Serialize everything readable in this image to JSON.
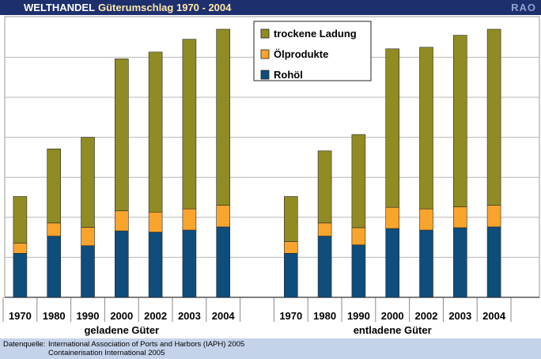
{
  "header": {
    "tag": "WELTHANDEL",
    "title": "Güterumschlag",
    "years": "1970 - 2004",
    "brand": "RAO"
  },
  "footer": {
    "label": "Datenquelle:",
    "sources": [
      "International Association of Ports and Harbors (IAPH) 2005",
      "Containerisation International 2005"
    ]
  },
  "colors": {
    "rohoel": "#0e4d7c",
    "oelprodukte": "#f9a42c",
    "trockene_ladung": "#908b23",
    "header_bg": "#1e2f6e",
    "footer_bg": "#c4d3ea"
  },
  "chart_data": {
    "type": "bar",
    "stacked": true,
    "title": "Güterumschlag 1970 - 2004",
    "xlabel": "",
    "ylabel": "",
    "ylim": [
      0,
      7
    ],
    "grid": true,
    "legend_position": "top-right",
    "groups": [
      {
        "label": "geladene Güter",
        "categories": [
          "1970",
          "1980",
          "1990",
          "2000",
          "2002",
          "2003",
          "2004"
        ]
      },
      {
        "label": "entladene Güter",
        "categories": [
          "1970",
          "1980",
          "1990",
          "2000",
          "2002",
          "2003",
          "2004"
        ]
      }
    ],
    "series": [
      {
        "name": "Rohöl",
        "color": "#0e4d7c",
        "values": [
          1.1,
          1.53,
          1.29,
          1.66,
          1.63,
          1.68,
          1.76,
          1.1,
          1.53,
          1.31,
          1.72,
          1.68,
          1.74,
          1.76
        ]
      },
      {
        "name": "Ölprodukte",
        "color": "#f9a42c",
        "values": [
          0.25,
          0.33,
          0.46,
          0.5,
          0.5,
          0.53,
          0.54,
          0.29,
          0.33,
          0.43,
          0.53,
          0.53,
          0.52,
          0.54
        ]
      },
      {
        "name": "trockene Ladung",
        "color": "#908b23",
        "values": [
          1.17,
          1.85,
          2.25,
          3.8,
          4.0,
          4.24,
          4.4,
          1.13,
          1.8,
          2.33,
          3.96,
          4.04,
          4.29,
          4.4
        ]
      }
    ],
    "legend_order": [
      "trockene Ladung",
      "Ölprodukte",
      "Rohöl"
    ]
  }
}
